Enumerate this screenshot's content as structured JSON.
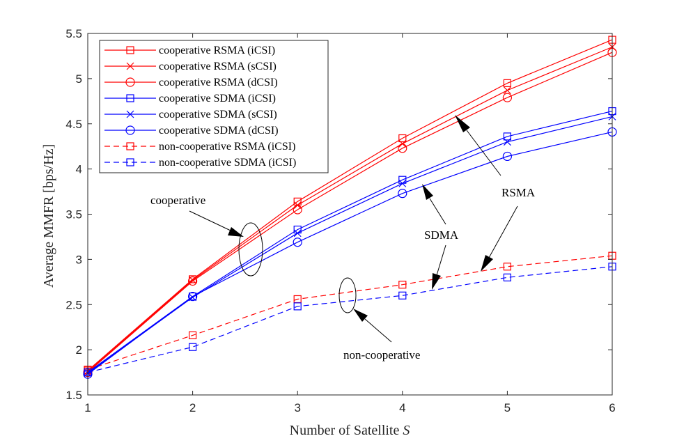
{
  "chart_data": {
    "type": "line",
    "title": "",
    "xlabel": "Number of Satellite S",
    "xlabel_text": "Number of Satellite ",
    "xlabel_var": "S",
    "ylabel": "Average MMFR [bps/Hz]",
    "xlim": [
      1,
      6
    ],
    "ylim": [
      1.5,
      5.5
    ],
    "x": [
      1,
      2,
      3,
      4,
      5,
      6
    ],
    "xticks": [
      "1",
      "2",
      "3",
      "4",
      "5",
      "6"
    ],
    "yticks": [
      "1.5",
      "2",
      "2.5",
      "3",
      "3.5",
      "4",
      "4.5",
      "5",
      "5.5"
    ],
    "grid": false,
    "legend_position": "top-left",
    "series": [
      {
        "name": "cooperative RSMA (iCSI)",
        "color": "#ff0000",
        "marker": "square",
        "dashed": false,
        "values": [
          1.77,
          2.78,
          3.64,
          4.34,
          4.95,
          5.43
        ]
      },
      {
        "name": "cooperative RSMA (sCSI)",
        "color": "#ff0000",
        "marker": "x",
        "dashed": false,
        "values": [
          1.76,
          2.77,
          3.6,
          4.28,
          4.87,
          5.35
        ]
      },
      {
        "name": "cooperative RSMA (dCSI)",
        "color": "#ff0000",
        "marker": "circle",
        "dashed": false,
        "values": [
          1.75,
          2.76,
          3.55,
          4.23,
          4.79,
          5.29
        ]
      },
      {
        "name": "cooperative SDMA (iCSI)",
        "color": "#0000ff",
        "marker": "square",
        "dashed": false,
        "values": [
          1.75,
          2.59,
          3.33,
          3.88,
          4.36,
          4.64
        ]
      },
      {
        "name": "cooperative SDMA (sCSI)",
        "color": "#0000ff",
        "marker": "x",
        "dashed": false,
        "values": [
          1.74,
          2.58,
          3.29,
          3.84,
          4.3,
          4.58
        ]
      },
      {
        "name": "cooperative SDMA (dCSI)",
        "color": "#0000ff",
        "marker": "circle",
        "dashed": false,
        "values": [
          1.73,
          2.59,
          3.19,
          3.73,
          4.14,
          4.41
        ]
      },
      {
        "name": "non-cooperative RSMA (iCSI)",
        "color": "#ff0000",
        "marker": "square",
        "dashed": true,
        "values": [
          1.78,
          2.16,
          2.56,
          2.72,
          2.92,
          3.04
        ]
      },
      {
        "name": "non-cooperative SDMA (iCSI)",
        "color": "#0000ff",
        "marker": "square",
        "dashed": true,
        "values": [
          1.75,
          2.03,
          2.48,
          2.6,
          2.8,
          2.92
        ]
      }
    ],
    "annotations": {
      "cooperative": "cooperative",
      "non_cooperative": "non-cooperative",
      "rsma": "RSMA",
      "sdma": "SDMA"
    }
  }
}
